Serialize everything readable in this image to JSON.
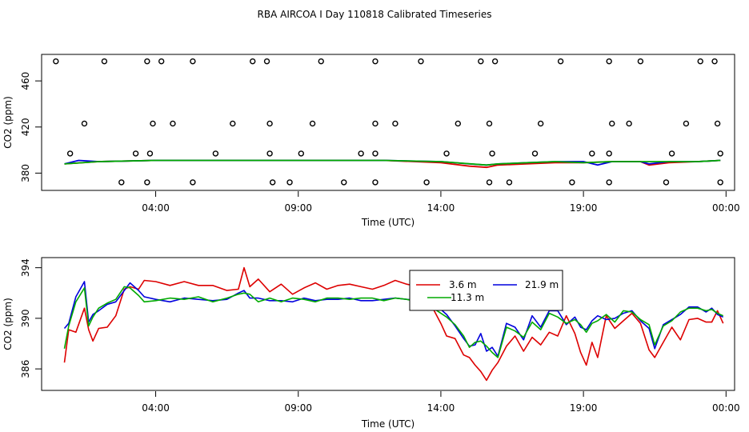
{
  "chart_data": [
    {
      "type": "scatter+line",
      "title": "RBA AIRCOA I  Day 110818  Calibrated Timeseries",
      "xlabel": "Time (UTC)",
      "ylabel": "CO2 (ppm)",
      "x_unit": "hours since 00:00 UTC",
      "xlim": [
        0,
        24.3
      ],
      "ylim": [
        365,
        483
      ],
      "x_ticks": [
        4,
        9,
        14,
        19,
        24
      ],
      "x_tick_labels": [
        "04:00",
        "09:00",
        "14:00",
        "19:00",
        "00:00"
      ],
      "y_ticks": [
        380,
        420,
        460
      ],
      "y_tick_labels": [
        "380",
        "420",
        "460"
      ],
      "calibration_points": {
        "marker": "open-circle",
        "color": "#000000",
        "x": [
          0.5,
          2.2,
          3.7,
          4.2,
          5.3,
          7.4,
          7.9,
          9.8,
          11.7,
          13.3,
          15.4,
          15.9,
          18.2,
          19.9,
          21.0,
          23.1,
          23.6,
          1.5,
          3.9,
          4.6,
          6.7,
          8.0,
          9.5,
          11.7,
          12.4,
          14.6,
          15.7,
          17.5,
          20.0,
          20.6,
          22.6,
          23.7,
          1.0,
          3.3,
          3.8,
          6.1,
          8.0,
          9.1,
          11.2,
          11.7,
          14.2,
          15.8,
          17.3,
          19.3,
          19.9,
          22.1,
          23.8,
          2.8,
          3.7,
          5.3,
          8.1,
          8.7,
          10.6,
          11.7,
          13.5,
          15.7,
          16.4,
          18.6,
          19.9,
          21.9,
          23.8
        ],
        "y": [
          477,
          477,
          477,
          477,
          477,
          477,
          477,
          477,
          477,
          477,
          477,
          477,
          477,
          477,
          477,
          477,
          477,
          423,
          423,
          423,
          423,
          423,
          423,
          423,
          423,
          423,
          423,
          423,
          423,
          423,
          423,
          423,
          397,
          397,
          397,
          397,
          397,
          397,
          397,
          397,
          397,
          397,
          397,
          397,
          397,
          397,
          397,
          372,
          372,
          372,
          372,
          372,
          372,
          372,
          372,
          372,
          372,
          372,
          372,
          372,
          372
        ]
      },
      "series": [
        {
          "name": "3.6 m",
          "color": "#dd0000",
          "x": [
            0.8,
            2,
            4,
            6,
            8,
            10,
            12,
            14,
            15,
            15.6,
            16,
            17,
            18,
            19,
            20,
            21,
            21.3,
            22,
            23,
            23.8
          ],
          "y": [
            388,
            390,
            391,
            391,
            391,
            391,
            391,
            389,
            386,
            385,
            387,
            388,
            389,
            389,
            390,
            390,
            387,
            389,
            390,
            391
          ]
        },
        {
          "name": "21.9 m",
          "color": "#0000dd",
          "x": [
            0.8,
            1.3,
            2,
            4,
            6,
            8,
            10,
            12,
            14,
            15,
            15.6,
            16,
            17,
            18,
            19,
            19.5,
            20,
            21,
            21.3,
            22,
            23,
            23.8
          ],
          "y": [
            388,
            391,
            390,
            391,
            391,
            391,
            391,
            391,
            390,
            388,
            387,
            388,
            389,
            390,
            390,
            387,
            390,
            390,
            388,
            390,
            390,
            391
          ]
        },
        {
          "name": "11.3 m",
          "color": "#00aa00",
          "x": [
            0.8,
            2,
            4,
            6,
            8,
            10,
            12,
            14,
            15.6,
            16,
            17,
            18,
            19,
            20,
            21,
            22,
            23,
            23.8
          ],
          "y": [
            388,
            390,
            391,
            391,
            391,
            391,
            391,
            390,
            387,
            388,
            389,
            390,
            389,
            390,
            390,
            390,
            390,
            391
          ]
        }
      ]
    },
    {
      "type": "line",
      "xlabel": "Time (UTC)",
      "ylabel": "CO2 (ppm)",
      "x_unit": "hours since 00:00 UTC",
      "xlim": [
        0,
        24.3
      ],
      "ylim": [
        384.3,
        394.8
      ],
      "x_ticks": [
        4,
        9,
        14,
        19,
        24
      ],
      "x_tick_labels": [
        "04:00",
        "09:00",
        "14:00",
        "19:00",
        "00:00"
      ],
      "y_ticks": [
        386,
        390,
        394
      ],
      "y_tick_labels": [
        "386",
        "390",
        "394"
      ],
      "legend": {
        "position": "top-center",
        "entries": [
          "3.6 m",
          "21.9 m",
          "11.3 m"
        ]
      },
      "series": [
        {
          "name": "3.6 m",
          "color": "#dd0000",
          "x": [
            0.8,
            0.95,
            1.2,
            1.5,
            1.65,
            1.8,
            2,
            2.3,
            2.6,
            2.9,
            3.1,
            3.4,
            3.6,
            4,
            4.5,
            5,
            5.5,
            6,
            6.5,
            6.9,
            7.1,
            7.3,
            7.6,
            8,
            8.4,
            8.8,
            9.2,
            9.6,
            10,
            10.4,
            10.8,
            11.2,
            11.6,
            12,
            12.4,
            12.8,
            13.2,
            13.6,
            14,
            14.2,
            14.5,
            14.8,
            15,
            15.2,
            15.4,
            15.6,
            15.8,
            16,
            16.3,
            16.6,
            16.9,
            17.2,
            17.5,
            17.8,
            18.1,
            18.4,
            18.7,
            18.9,
            19.1,
            19.3,
            19.5,
            19.8,
            20.1,
            20.4,
            20.7,
            21,
            21.3,
            21.5,
            21.8,
            22.1,
            22.4,
            22.7,
            23,
            23.3,
            23.5,
            23.7,
            23.9
          ],
          "y": [
            386.5,
            389.1,
            388.9,
            390.8,
            389.1,
            388.2,
            389.2,
            389.3,
            390.2,
            392.3,
            392.5,
            392.3,
            393.0,
            392.9,
            392.6,
            392.9,
            392.6,
            392.6,
            392.2,
            392.3,
            394.0,
            392.5,
            393.1,
            392.1,
            392.7,
            391.9,
            392.4,
            392.8,
            392.3,
            392.6,
            392.7,
            392.5,
            392.3,
            392.6,
            393.0,
            392.7,
            392.5,
            391.3,
            389.6,
            388.6,
            388.4,
            387.1,
            386.9,
            386.3,
            385.8,
            385.1,
            385.9,
            386.5,
            387.8,
            388.6,
            387.4,
            388.5,
            387.9,
            388.9,
            388.6,
            390.2,
            388.8,
            387.3,
            386.3,
            388.1,
            386.9,
            390.2,
            389.2,
            389.8,
            390.4,
            389.6,
            387.5,
            386.9,
            388.1,
            389.3,
            388.3,
            389.9,
            390.0,
            389.7,
            389.7,
            390.6,
            389.6
          ]
        },
        {
          "name": "21.9 m",
          "color": "#0000dd",
          "x": [
            0.8,
            0.95,
            1.2,
            1.5,
            1.65,
            1.8,
            2,
            2.3,
            2.6,
            2.9,
            3.1,
            3.4,
            3.6,
            4,
            4.5,
            5,
            5.5,
            6,
            6.5,
            6.9,
            7.1,
            7.3,
            7.6,
            8,
            8.4,
            8.8,
            9.2,
            9.6,
            10,
            10.4,
            10.8,
            11.2,
            11.6,
            12,
            12.4,
            12.8,
            13.2,
            13.6,
            14,
            14.2,
            14.5,
            14.8,
            15,
            15.2,
            15.4,
            15.6,
            15.8,
            16,
            16.3,
            16.6,
            16.9,
            17.2,
            17.5,
            17.8,
            18.1,
            18.4,
            18.7,
            18.9,
            19.1,
            19.3,
            19.5,
            19.8,
            20.1,
            20.4,
            20.7,
            21,
            21.3,
            21.5,
            21.8,
            22.1,
            22.4,
            22.7,
            23,
            23.3,
            23.5,
            23.7,
            23.9
          ],
          "y": [
            389.2,
            389.6,
            391.7,
            392.9,
            389.7,
            390.3,
            390.6,
            391.1,
            391.3,
            392.2,
            392.8,
            392.2,
            391.7,
            391.5,
            391.3,
            391.6,
            391.5,
            391.4,
            391.5,
            392.0,
            392.2,
            391.6,
            391.6,
            391.4,
            391.4,
            391.3,
            391.6,
            391.4,
            391.5,
            391.5,
            391.6,
            391.4,
            391.4,
            391.5,
            391.6,
            391.5,
            391.4,
            391.0,
            390.7,
            390.3,
            389.4,
            388.4,
            387.8,
            387.9,
            388.8,
            387.4,
            387.7,
            387.0,
            389.6,
            389.3,
            388.3,
            390.2,
            389.3,
            390.6,
            390.6,
            389.5,
            390.1,
            389.3,
            389.1,
            389.8,
            390.2,
            389.9,
            390.0,
            390.4,
            390.6,
            389.8,
            389.2,
            387.6,
            389.5,
            389.9,
            390.3,
            390.9,
            390.9,
            390.5,
            390.8,
            390.3,
            390.1
          ]
        },
        {
          "name": "11.3 m",
          "color": "#00aa00",
          "x": [
            0.8,
            0.95,
            1.2,
            1.5,
            1.65,
            1.8,
            2,
            2.3,
            2.6,
            2.9,
            3.1,
            3.4,
            3.6,
            4,
            4.5,
            5,
            5.5,
            6,
            6.5,
            6.9,
            7.1,
            7.3,
            7.6,
            8,
            8.4,
            8.8,
            9.2,
            9.6,
            10,
            10.4,
            10.8,
            11.2,
            11.6,
            12,
            12.4,
            12.8,
            13.2,
            13.6,
            14,
            14.2,
            14.5,
            14.8,
            15,
            15.2,
            15.4,
            15.6,
            15.8,
            16,
            16.3,
            16.6,
            16.9,
            17.2,
            17.5,
            17.8,
            18.1,
            18.4,
            18.7,
            18.9,
            19.1,
            19.3,
            19.5,
            19.8,
            20.1,
            20.4,
            20.7,
            21,
            21.3,
            21.5,
            21.8,
            22.1,
            22.4,
            22.7,
            23,
            23.3,
            23.5,
            23.7,
            23.9
          ],
          "y": [
            387.6,
            389.4,
            391.3,
            392.4,
            389.4,
            390.1,
            390.8,
            391.2,
            391.5,
            392.5,
            392.4,
            391.8,
            391.3,
            391.4,
            391.6,
            391.5,
            391.7,
            391.3,
            391.6,
            391.9,
            392.0,
            391.9,
            391.3,
            391.6,
            391.3,
            391.6,
            391.5,
            391.3,
            391.6,
            391.6,
            391.5,
            391.6,
            391.6,
            391.4,
            391.6,
            391.5,
            391.3,
            391.0,
            390.4,
            390.1,
            389.5,
            388.6,
            387.7,
            388.1,
            388.2,
            387.8,
            387.3,
            386.9,
            389.3,
            389.0,
            388.5,
            389.7,
            389.1,
            390.4,
            390.1,
            389.6,
            389.9,
            389.5,
            388.9,
            389.6,
            389.8,
            390.3,
            389.7,
            390.6,
            390.5,
            389.9,
            389.5,
            387.9,
            389.4,
            389.8,
            390.5,
            390.8,
            390.8,
            390.6,
            390.7,
            390.4,
            390.2
          ]
        }
      ]
    }
  ]
}
